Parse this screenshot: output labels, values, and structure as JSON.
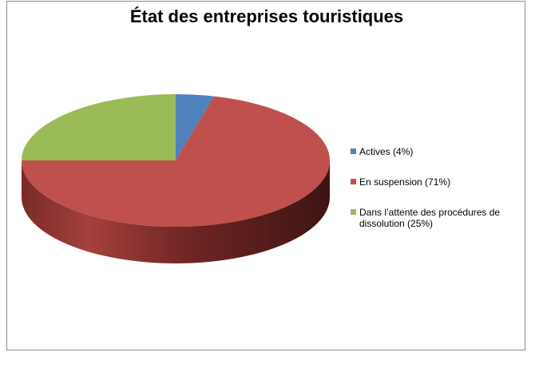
{
  "chart_data": {
    "type": "pie",
    "title": "État des entreprises touristiques",
    "categories": [
      "Actives (4%)",
      "En suspension (71%)",
      "Dans l’attente des procédures  de dissolution (25%)"
    ],
    "values": [
      4,
      71,
      25
    ],
    "colors": [
      "#4f81bd",
      "#c0504d",
      "#9bbb59"
    ],
    "legend_position": "right",
    "style": "3d"
  }
}
